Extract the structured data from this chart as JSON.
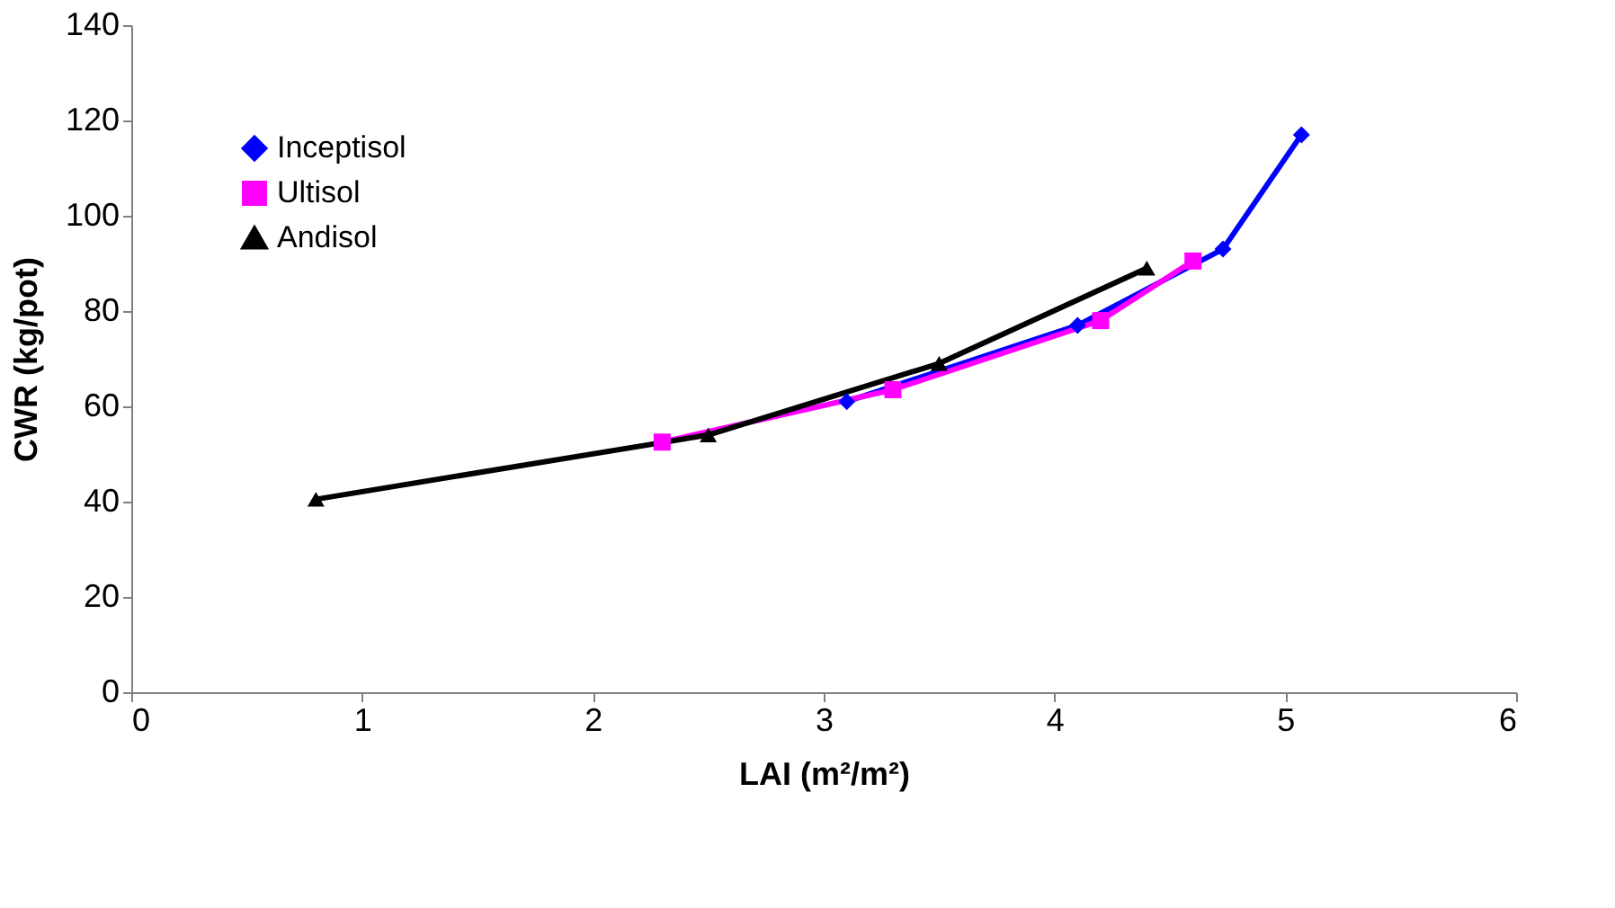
{
  "chart_data": {
    "type": "line",
    "xlabel": "LAI (m²/m²)",
    "ylabel": "CWR (kg/pot)",
    "xlim": [
      0,
      6
    ],
    "xticks": [
      0,
      1,
      2,
      3,
      4,
      5,
      6
    ],
    "ylim": [
      0,
      140
    ],
    "yticks": [
      0,
      20,
      40,
      60,
      80,
      100,
      120,
      140
    ],
    "grid": false,
    "legend": "top left",
    "line_style": "solid",
    "series": [
      {
        "name": "Inceptisol",
        "color": "#0000ff",
        "marker": "diamond",
        "x": [
          3.1,
          4.1,
          4.73,
          5.07
        ],
        "values": [
          61,
          77,
          93,
          117
        ]
      },
      {
        "name": "Ultisol",
        "color": "#ff00ff",
        "marker": "square",
        "x": [
          2.3,
          3.3,
          4.2,
          4.6
        ],
        "values": [
          52.5,
          63.5,
          78,
          90.5
        ]
      },
      {
        "name": "Andisol",
        "color": "#000000",
        "marker": "triangle",
        "x": [
          0.8,
          2.5,
          3.5,
          4.4
        ],
        "values": [
          40.5,
          54,
          69,
          89
        ]
      }
    ]
  }
}
